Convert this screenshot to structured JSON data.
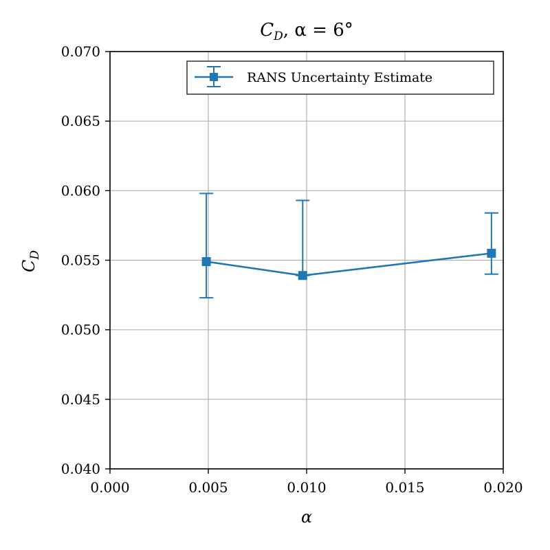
{
  "chart_data": {
    "type": "line",
    "title_main": "C",
    "title_sub": "D",
    "title_rest": ", α = 6°",
    "xlabel": "α",
    "ylabel_main": "C",
    "ylabel_sub": "D",
    "xlim": [
      0.0,
      0.02
    ],
    "ylim": [
      0.04,
      0.07
    ],
    "xticks": [
      "0.000",
      "0.005",
      "0.010",
      "0.015",
      "0.020"
    ],
    "yticks": [
      "0.040",
      "0.045",
      "0.050",
      "0.055",
      "0.060",
      "0.065",
      "0.070"
    ],
    "grid": true,
    "legend_position": "top-right",
    "series": [
      {
        "name": "RANS Uncertainty Estimate",
        "color": "#1f77b4",
        "marker": "square",
        "x": [
          0.0049,
          0.0098,
          0.0194
        ],
        "y": [
          0.0549,
          0.0539,
          0.0555
        ],
        "y_upper": [
          0.0598,
          0.0593,
          0.0584
        ],
        "y_lower": [
          0.0523,
          0.0539,
          0.054
        ]
      }
    ]
  }
}
